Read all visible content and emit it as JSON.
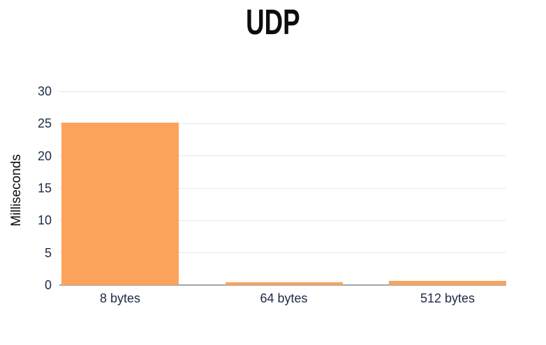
{
  "page": {
    "background": "#ffffff"
  },
  "title": "UDP",
  "chart_data": {
    "type": "bar",
    "title": "UDP",
    "categories": [
      "8 bytes",
      "64 bytes",
      "512 bytes"
    ],
    "values": [
      25.1,
      0.4,
      0.6
    ],
    "xlabel": "",
    "ylabel": "Milliseconds",
    "ylim": [
      0,
      30
    ],
    "yticks": [
      0,
      5,
      10,
      15,
      20,
      25,
      30
    ],
    "grid": true,
    "legend": false,
    "colors": {
      "bar": "#FBA35B",
      "gridline": "#e6e7e9",
      "axis_line": "#9ea6af",
      "tick_text": "#1c2b45",
      "title_text": "#0d0d0d",
      "axis_label_text": "#0c0c0c"
    }
  }
}
